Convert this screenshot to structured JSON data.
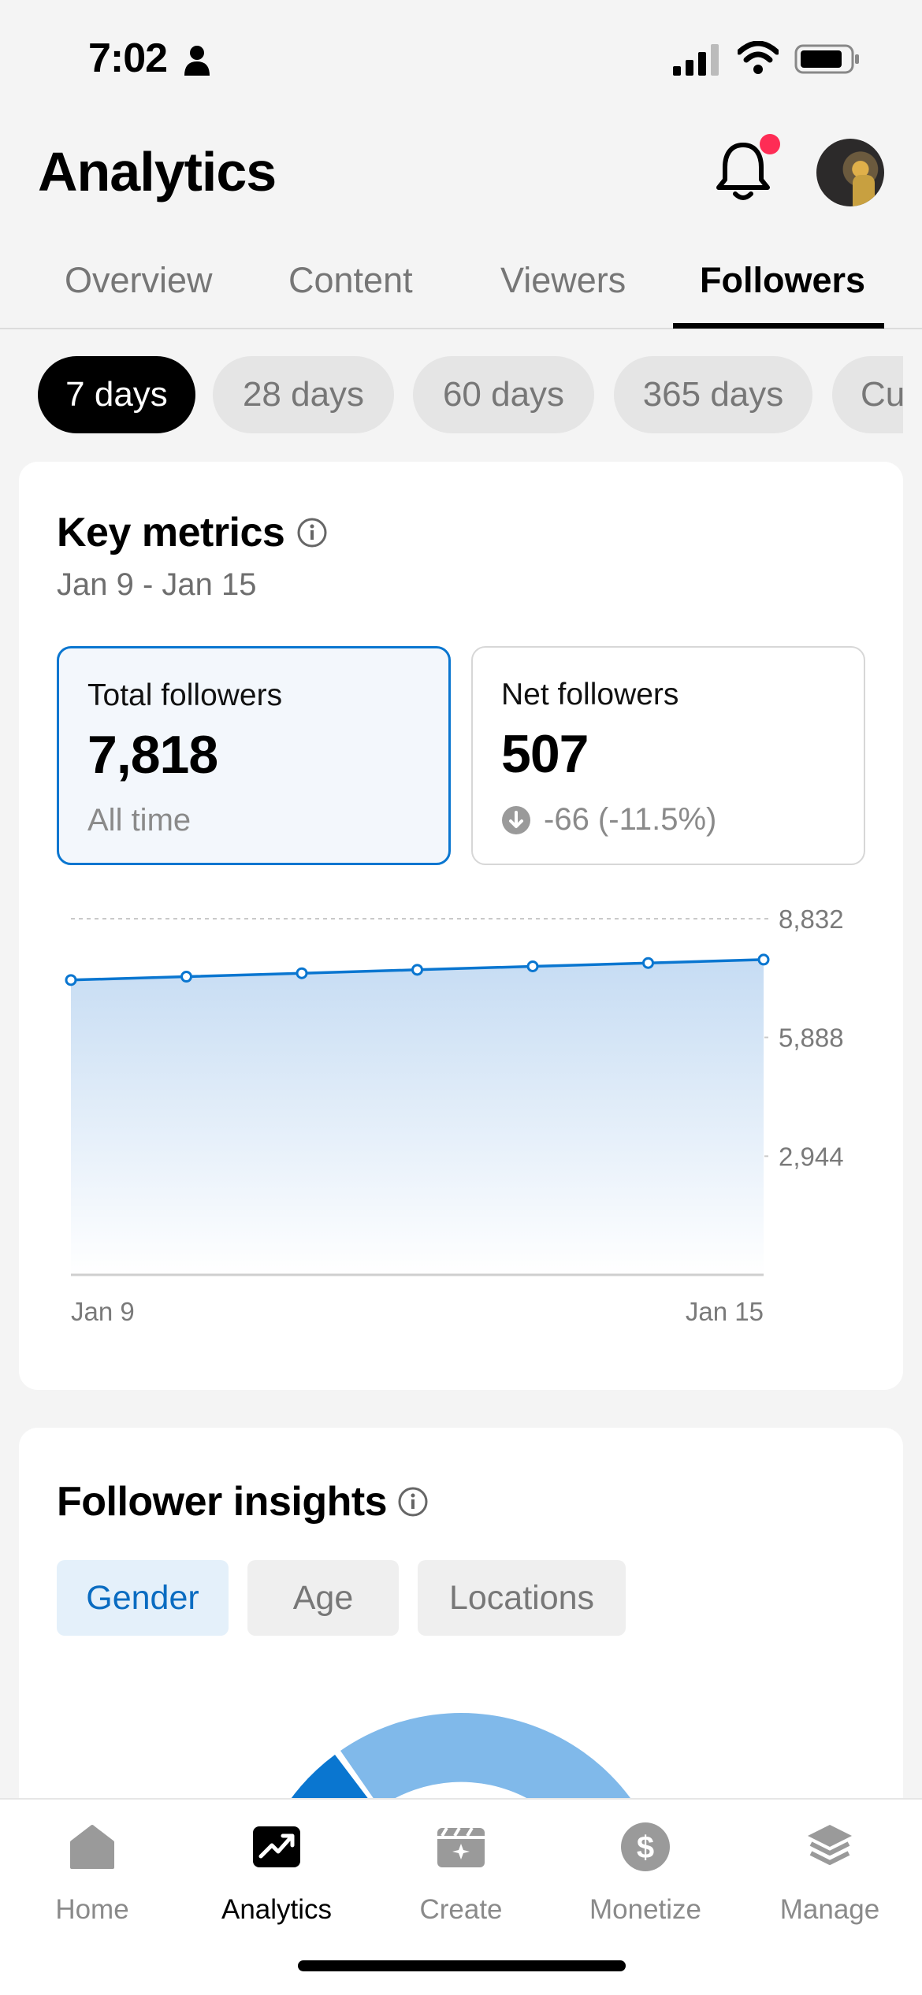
{
  "status_bar": {
    "time": "7:02"
  },
  "header": {
    "title": "Analytics",
    "notification_badge": true
  },
  "tabs": [
    {
      "label": "Overview",
      "active": false
    },
    {
      "label": "Content",
      "active": false
    },
    {
      "label": "Viewers",
      "active": false
    },
    {
      "label": "Followers",
      "active": true
    }
  ],
  "ranges": [
    {
      "label": "7 days",
      "active": true
    },
    {
      "label": "28 days",
      "active": false
    },
    {
      "label": "60 days",
      "active": false
    },
    {
      "label": "365 days",
      "active": false
    },
    {
      "label": "Cu",
      "active": false
    }
  ],
  "key_metrics": {
    "title": "Key metrics",
    "date_range": "Jan 9 - Jan 15",
    "total": {
      "label": "Total followers",
      "value": "7,818",
      "sub": "All time"
    },
    "net": {
      "label": "Net followers",
      "value": "507",
      "delta": "-66 (-11.5%)",
      "delta_direction": "down"
    }
  },
  "chart_data": {
    "type": "area",
    "x_labels_shown": [
      "Jan 9",
      "Jan 15"
    ],
    "x": [
      "Jan 9",
      "Jan 10",
      "Jan 11",
      "Jan 12",
      "Jan 13",
      "Jan 14",
      "Jan 15"
    ],
    "values": [
      7311,
      7395,
      7480,
      7565,
      7650,
      7734,
      7818
    ],
    "y_ticks": [
      "8,832",
      "5,888",
      "2,944"
    ],
    "y_tick_values": [
      8832,
      5888,
      2944
    ],
    "ylim": [
      0,
      8832
    ],
    "grid": true,
    "colors": {
      "line": "#0a76d0",
      "fill_top": "#c6dcf3",
      "fill_bottom": "#ffffff"
    }
  },
  "insights": {
    "title": "Follower insights",
    "tabs": [
      {
        "label": "Gender",
        "active": true
      },
      {
        "label": "Age",
        "active": false
      },
      {
        "label": "Locations",
        "active": false
      }
    ],
    "donut_colors": [
      "#0a76d0",
      "#80b9ea"
    ]
  },
  "bottom_nav": [
    {
      "label": "Home",
      "icon": "home-icon",
      "active": false
    },
    {
      "label": "Analytics",
      "icon": "analytics-icon",
      "active": true
    },
    {
      "label": "Create",
      "icon": "create-icon",
      "active": false
    },
    {
      "label": "Monetize",
      "icon": "dollar-icon",
      "active": false
    },
    {
      "label": "Manage",
      "icon": "layers-icon",
      "active": false
    }
  ]
}
